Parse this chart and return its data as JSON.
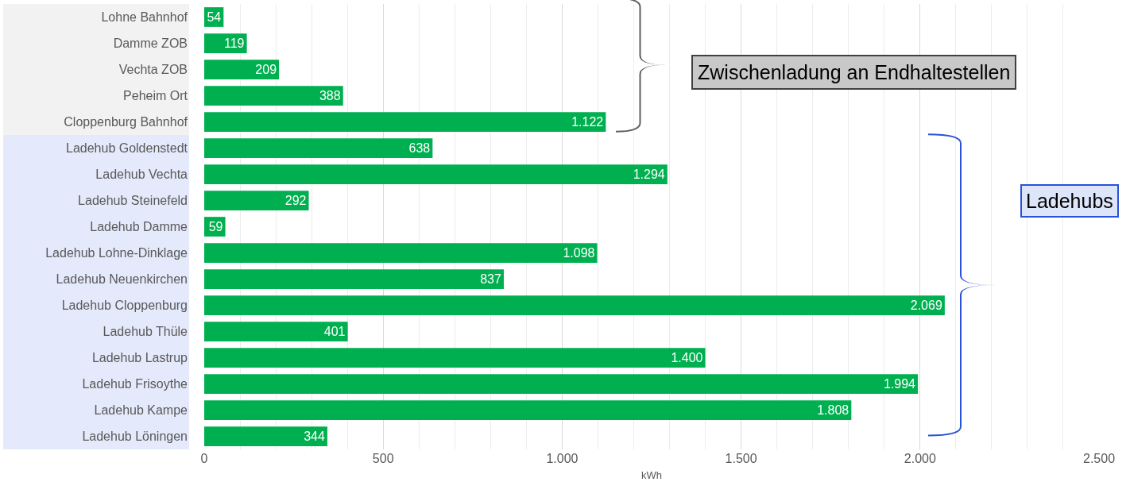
{
  "chart_data": {
    "type": "bar",
    "orientation": "horizontal",
    "xlabel": "kWh",
    "categories": [
      "Lohne Bahnhof",
      "Damme ZOB",
      "Vechta ZOB",
      "Peheim Ort",
      "Cloppenburg Bahnhof",
      "Ladehub Goldenstedt",
      "Ladehub Vechta",
      "Ladehub Steinefeld",
      "Ladehub Damme",
      "Ladehub Lohne-Dinklage",
      "Ladehub Neuenkirchen",
      "Ladehub Cloppenburg",
      "Ladehub Thüle",
      "Ladehub Lastrup",
      "Ladehub Frisoythe",
      "Ladehub Kampe",
      "Ladehub Löningen"
    ],
    "values": [
      54,
      119,
      209,
      388,
      1122,
      638,
      1294,
      292,
      59,
      1098,
      837,
      2069,
      401,
      1400,
      1994,
      1808,
      344
    ],
    "value_labels": [
      "54",
      "119",
      "209",
      "388",
      "1.122",
      "638",
      "1.294",
      "292",
      "59",
      "1.098",
      "837",
      "2.069",
      "401",
      "1.400",
      "1.994",
      "1.808",
      "344"
    ],
    "color": "#00b050",
    "xlim": [
      0,
      2500
    ],
    "xticks": [
      0,
      {
        "value": 500,
        "label": "500"
      },
      {
        "value": 1000,
        "label": "1.000"
      },
      {
        "value": 1500,
        "label": "1.500"
      },
      {
        "value": 2000,
        "label": "2.000"
      },
      {
        "value": 2500,
        "label": "2.500"
      }
    ],
    "grid": "x",
    "annotations": [
      "Zwischenladung an Endhaltestellen",
      "Ladehubs"
    ]
  }
}
